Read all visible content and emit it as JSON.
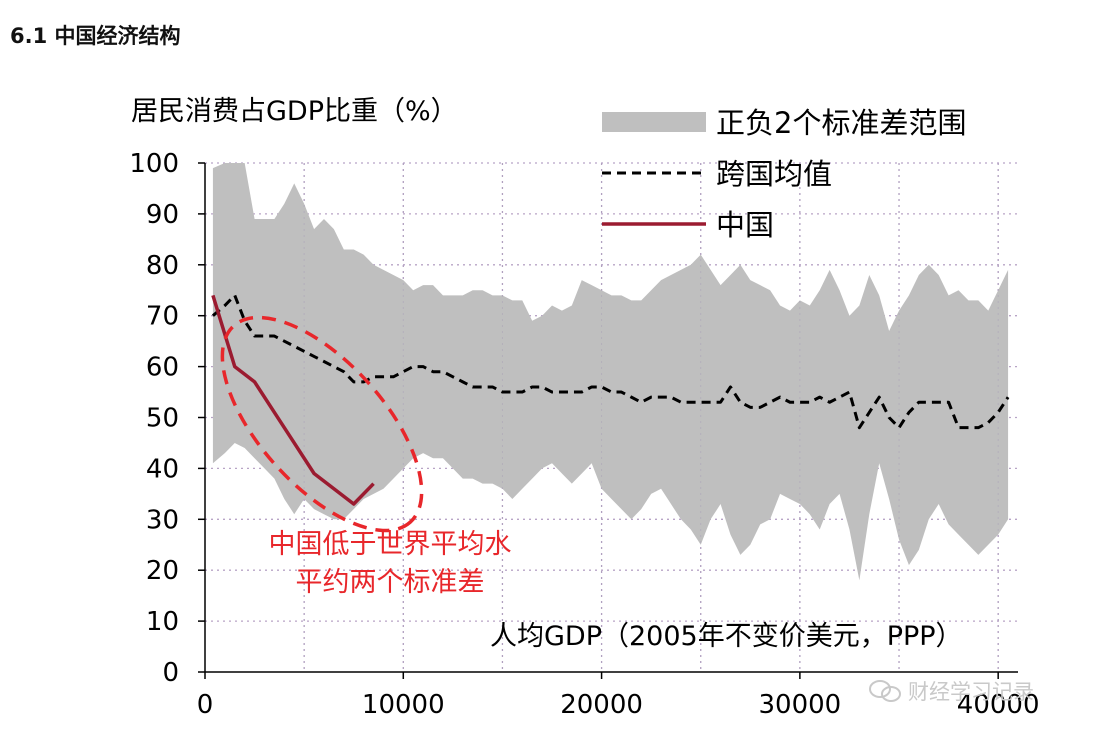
{
  "heading": "6.1 中国经济结构",
  "watermark": "财经学习记录",
  "chart_data": {
    "type": "line",
    "ylabel": "居民消费占GDP比重（%）",
    "xlabel": "人均GDP（2005年不变价美元，PPP）",
    "xlim": [
      0,
      41000
    ],
    "ylim": [
      0,
      100
    ],
    "x_ticks": [
      0,
      10000,
      20000,
      30000,
      40000
    ],
    "y_ticks": [
      0,
      10,
      20,
      30,
      40,
      50,
      60,
      70,
      80,
      90,
      100
    ],
    "grid": true,
    "legend": {
      "placement": "top-right",
      "entries": [
        {
          "label": "正负2个标准差范围",
          "style": "band",
          "color": "#bfbfbf"
        },
        {
          "label": "跨国均值",
          "style": "dashed",
          "color": "#000000"
        },
        {
          "label": "中国",
          "style": "solid",
          "color": "#9b1b30"
        }
      ]
    },
    "band": {
      "name": "正负2个标准差范围",
      "x": [
        400,
        1000,
        1500,
        2000,
        2500,
        3000,
        3500,
        4000,
        4500,
        5000,
        5500,
        6000,
        6500,
        7000,
        7500,
        8000,
        8500,
        9000,
        9500,
        10000,
        10500,
        11000,
        11500,
        12000,
        12500,
        13000,
        13500,
        14000,
        14500,
        15000,
        15500,
        16000,
        16500,
        17000,
        17500,
        18000,
        18500,
        19000,
        19500,
        20000,
        20500,
        21000,
        21500,
        22000,
        22500,
        23000,
        23500,
        24000,
        24500,
        25000,
        25500,
        26000,
        26500,
        27000,
        27500,
        28000,
        28500,
        29000,
        29500,
        30000,
        30500,
        31000,
        31500,
        32000,
        32500,
        33000,
        33500,
        34000,
        34500,
        35000,
        35500,
        36000,
        36500,
        37000,
        37500,
        38000,
        38500,
        39000,
        39500,
        40000,
        40500
      ],
      "upper": [
        99,
        100,
        100,
        100,
        89,
        89,
        89,
        92,
        96,
        92,
        87,
        89,
        87,
        83,
        83,
        82,
        80,
        79,
        78,
        77,
        75,
        76,
        76,
        74,
        74,
        74,
        75,
        75,
        74,
        74,
        73,
        73,
        69,
        70,
        72,
        71,
        72,
        77,
        76,
        75,
        74,
        74,
        73,
        73,
        75,
        77,
        78,
        79,
        80,
        82,
        79,
        76,
        78,
        80,
        77,
        76,
        75,
        72,
        71,
        73,
        72,
        75,
        79,
        75,
        70,
        72,
        78,
        74,
        67,
        71,
        74,
        78,
        80,
        78,
        74,
        75,
        73,
        73,
        71,
        75,
        79
      ],
      "lower": [
        41,
        43,
        45,
        44,
        42,
        40,
        38,
        34,
        31,
        34,
        32,
        31,
        30,
        30,
        32,
        34,
        35,
        36,
        38,
        40,
        42,
        43,
        42,
        42,
        40,
        38,
        38,
        37,
        37,
        36,
        34,
        36,
        38,
        40,
        41,
        39,
        37,
        39,
        41,
        36,
        34,
        32,
        30,
        32,
        35,
        36,
        33,
        30,
        28,
        25,
        30,
        33,
        27,
        23,
        25,
        29,
        30,
        35,
        34,
        33,
        31,
        28,
        33,
        35,
        28,
        18,
        31,
        41,
        34,
        26,
        21,
        24,
        30,
        33,
        29,
        27,
        25,
        23,
        25,
        27,
        30
      ]
    },
    "series": [
      {
        "name": "跨国均值",
        "style": "dashed",
        "color": "#000000",
        "x": [
          400,
          1000,
          1500,
          2000,
          2500,
          3000,
          3500,
          4000,
          4500,
          5000,
          5500,
          6000,
          6500,
          7000,
          7500,
          8000,
          8500,
          9000,
          9500,
          10000,
          10500,
          11000,
          11500,
          12000,
          12500,
          13000,
          13500,
          14000,
          14500,
          15000,
          15500,
          16000,
          16500,
          17000,
          17500,
          18000,
          18500,
          19000,
          19500,
          20000,
          20500,
          21000,
          21500,
          22000,
          22500,
          23000,
          23500,
          24000,
          24500,
          25000,
          25500,
          26000,
          26500,
          27000,
          27500,
          28000,
          28500,
          29000,
          29500,
          30000,
          30500,
          31000,
          31500,
          32000,
          32500,
          33000,
          33500,
          34000,
          34500,
          35000,
          35500,
          36000,
          36500,
          37000,
          37500,
          38000,
          38500,
          39000,
          39500,
          40000,
          40500
        ],
        "values": [
          70,
          72,
          74,
          69,
          66,
          66,
          66,
          65,
          64,
          63,
          62,
          61,
          60,
          59,
          57,
          57,
          58,
          58,
          58,
          59,
          60,
          60,
          59,
          59,
          58,
          57,
          56,
          56,
          56,
          55,
          55,
          55,
          56,
          56,
          55,
          55,
          55,
          55,
          56,
          56,
          55,
          55,
          54,
          53,
          54,
          54,
          54,
          53,
          53,
          53,
          53,
          53,
          56,
          53,
          52,
          52,
          53,
          54,
          53,
          53,
          53,
          54,
          53,
          54,
          55,
          48,
          51,
          54,
          50,
          48,
          51,
          53,
          53,
          53,
          53,
          48,
          48,
          48,
          49,
          51,
          54
        ]
      },
      {
        "name": "中国",
        "style": "solid",
        "color": "#9b1b30",
        "x": [
          400,
          1500,
          2500,
          3500,
          4500,
          5500,
          6500,
          7500,
          8500
        ],
        "values": [
          74,
          60,
          57,
          51,
          45,
          39,
          36,
          33,
          37
        ]
      }
    ],
    "annotation": {
      "lines": [
        "中国低于世界平均水",
        "平约两个标准差"
      ],
      "color": "#e8272b"
    }
  }
}
